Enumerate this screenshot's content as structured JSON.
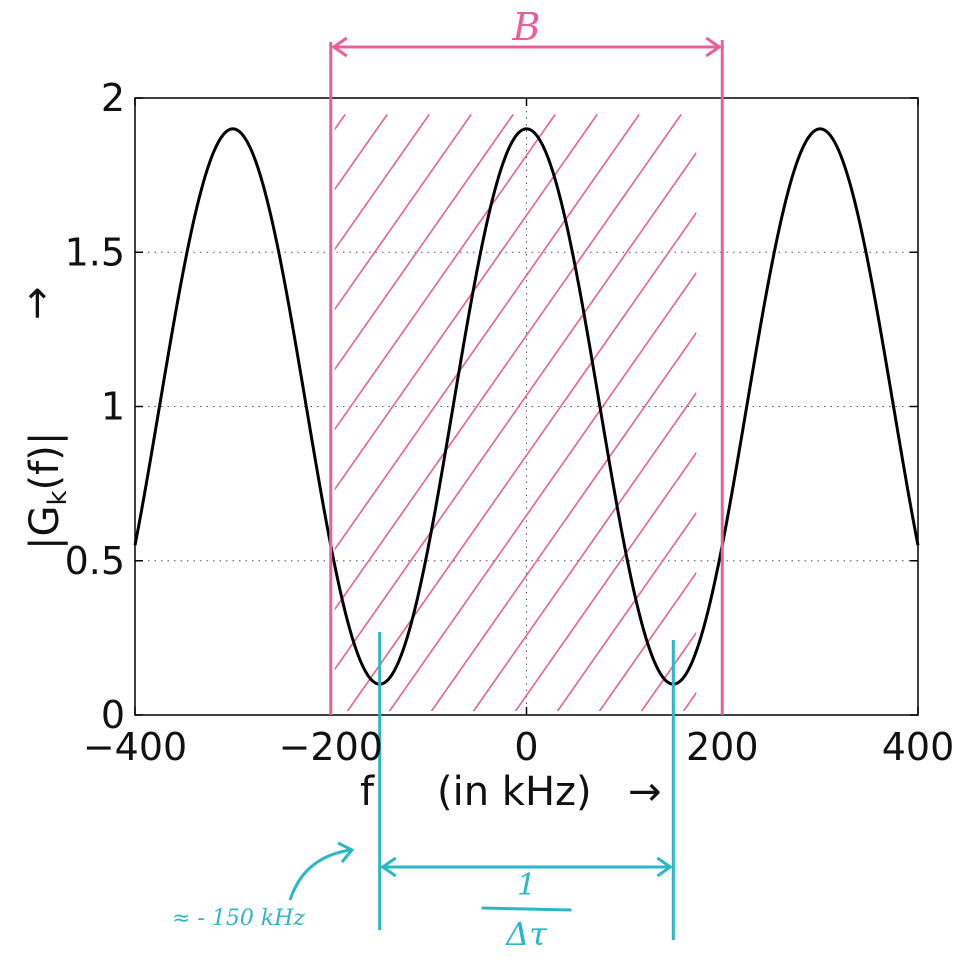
{
  "chart_data": {
    "type": "line",
    "xlabel": "f",
    "xlabel_unit": "(in kHz)",
    "xlabel_arrow": "→",
    "ylabel": "|G",
    "ylabel_sub": "k",
    "ylabel_tail": "(f)|",
    "ylabel_arrow": "→",
    "xlim": [
      -400,
      400
    ],
    "ylim": [
      0,
      2
    ],
    "xticks": [
      -400,
      -200,
      0,
      200,
      400
    ],
    "xtick_labels": [
      "−400",
      "−200",
      "0",
      "200",
      "400"
    ],
    "yticks": [
      0,
      0.5,
      1,
      1.5,
      2
    ],
    "ytick_labels": [
      "0",
      "0.5",
      "1",
      "1.5",
      "2"
    ],
    "grid": "dotted",
    "series": [
      {
        "function": "y = 1 + 0.9*cos(2*pi*f/300)",
        "color": "#000000",
        "x_start": -400,
        "x_end": 400,
        "peaks": [
          [
            -300,
            1.9
          ],
          [
            0,
            1.9
          ],
          [
            300,
            1.9
          ]
        ],
        "minima": [
          [
            -150,
            0.1
          ],
          [
            150,
            0.1
          ]
        ]
      }
    ],
    "annotations": {
      "bandwidth": {
        "label": "B",
        "from": -200,
        "to": 200,
        "color": "#e8609a",
        "hatched": true
      },
      "period": {
        "label_top": "1",
        "label_bottom": "Δτ",
        "from": -150,
        "to": 150,
        "color": "#2bb7c6"
      },
      "note": {
        "text": "≈ - 150 kHz",
        "points_to": -150,
        "color": "#2bb7c6"
      }
    }
  }
}
